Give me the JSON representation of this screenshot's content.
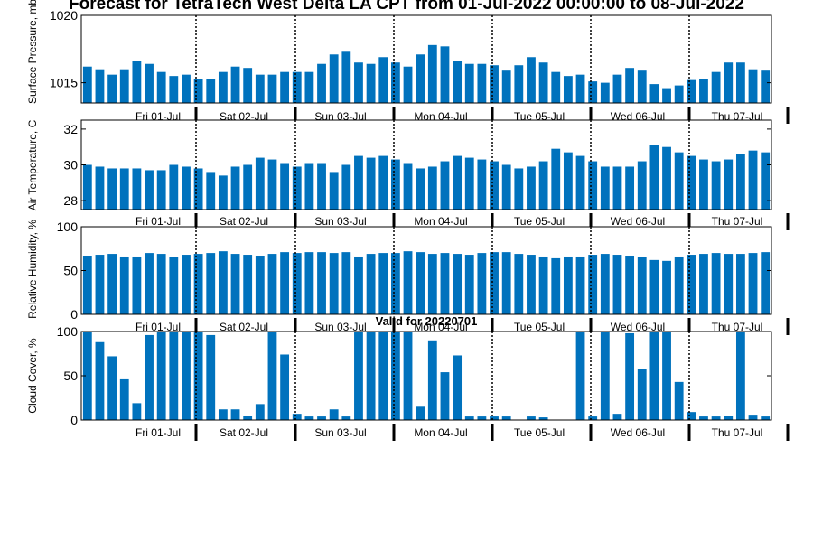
{
  "figure": {
    "title": "Forecast for TetraTech West Delta LA CPT from 01-Jul-2022 00:00:00 to 08-Jul-2022",
    "subtitle": "Valid for 20220701"
  },
  "chart_data": [
    {
      "type": "bar",
      "ylabel": "Surface Pressure, mb",
      "ylim": [
        1013.5,
        1020
      ],
      "yticks": [
        1015,
        1020
      ],
      "day_labels": [
        "Fri 01-Jul",
        "Sat 02-Jul",
        "Sun 03-Jul",
        "Mon 04-Jul",
        "Tue 05-Jul",
        "Wed 06-Jul",
        "Thu 07-Jul"
      ],
      "bar_color": "#0072BD",
      "values": [
        1016.2,
        1016.0,
        1015.6,
        1016.0,
        1016.6,
        1016.4,
        1015.8,
        1015.5,
        1015.6,
        1015.3,
        1015.3,
        1015.8,
        1016.2,
        1016.1,
        1015.6,
        1015.6,
        1015.8,
        1015.8,
        1015.8,
        1016.4,
        1017.1,
        1017.3,
        1016.5,
        1016.4,
        1016.9,
        1016.5,
        1016.2,
        1017.1,
        1017.8,
        1017.7,
        1016.6,
        1016.4,
        1016.4,
        1016.3,
        1015.9,
        1016.3,
        1016.9,
        1016.5,
        1015.8,
        1015.5,
        1015.6,
        1015.1,
        1015.0,
        1015.6,
        1016.1,
        1015.9,
        1014.9,
        1014.6,
        1014.8,
        1015.2,
        1015.3,
        1015.8,
        1016.5,
        1016.5,
        1016.0,
        1015.9
      ]
    },
    {
      "type": "bar",
      "ylabel": "Air Temperature, C",
      "ylim": [
        27.5,
        32.5
      ],
      "yticks": [
        28,
        30,
        32
      ],
      "day_labels": [
        "Fri 01-Jul",
        "Sat 02-Jul",
        "Sun 03-Jul",
        "Mon 04-Jul",
        "Tue 05-Jul",
        "Wed 06-Jul",
        "Thu 07-Jul"
      ],
      "bar_color": "#0072BD",
      "values": [
        30.0,
        29.9,
        29.8,
        29.8,
        29.8,
        29.7,
        29.7,
        30.0,
        29.9,
        29.8,
        29.6,
        29.4,
        29.9,
        30.0,
        30.4,
        30.3,
        30.1,
        29.9,
        30.1,
        30.1,
        29.6,
        30.0,
        30.5,
        30.4,
        30.5,
        30.3,
        30.1,
        29.8,
        29.9,
        30.2,
        30.5,
        30.4,
        30.3,
        30.2,
        30.0,
        29.8,
        29.9,
        30.2,
        30.9,
        30.7,
        30.5,
        30.2,
        29.9,
        29.9,
        29.9,
        30.2,
        31.1,
        31.0,
        30.7,
        30.5,
        30.3,
        30.2,
        30.3,
        30.6,
        30.8,
        30.7
      ]
    },
    {
      "type": "bar",
      "ylabel": "Relative Humidity, %",
      "ylim": [
        0,
        100
      ],
      "yticks": [
        0,
        50,
        100
      ],
      "day_labels": [
        "Fri 01-Jul",
        "Sat 02-Jul",
        "Sun 03-Jul",
        "Mon 04-Jul",
        "Tue 05-Jul",
        "Wed 06-Jul",
        "Thu 07-Jul"
      ],
      "bar_color": "#0072BD",
      "values": [
        67,
        68,
        69,
        66,
        66,
        70,
        69,
        65,
        68,
        69,
        70,
        72,
        69,
        68,
        67,
        69,
        71,
        70,
        71,
        71,
        70,
        71,
        66,
        69,
        70,
        70,
        72,
        71,
        69,
        70,
        69,
        68,
        70,
        71,
        71,
        69,
        68,
        66,
        64,
        66,
        66,
        68,
        69,
        68,
        67,
        65,
        62,
        61,
        66,
        68,
        69,
        70,
        69,
        69,
        70,
        71
      ]
    },
    {
      "type": "bar",
      "ylabel": "Cloud Cover, %",
      "ylim": [
        0,
        100
      ],
      "yticks": [
        0,
        50,
        100
      ],
      "day_labels": [
        "Fri 01-Jul",
        "Sat 02-Jul",
        "Sun 03-Jul",
        "Mon 04-Jul",
        "Tue 05-Jul",
        "Wed 06-Jul",
        "Thu 07-Jul"
      ],
      "bar_color": "#0072BD",
      "values": [
        100,
        88,
        72,
        46,
        19,
        96,
        100,
        100,
        100,
        100,
        96,
        12,
        12,
        5,
        18,
        100,
        74,
        7,
        4,
        4,
        12,
        4,
        100,
        100,
        100,
        100,
        100,
        15,
        90,
        54,
        73,
        4,
        4,
        4,
        4,
        0,
        4,
        3,
        0,
        0,
        100,
        4,
        100,
        7,
        98,
        58,
        100,
        100,
        43,
        9,
        4,
        4,
        5,
        100,
        6,
        4
      ]
    }
  ]
}
